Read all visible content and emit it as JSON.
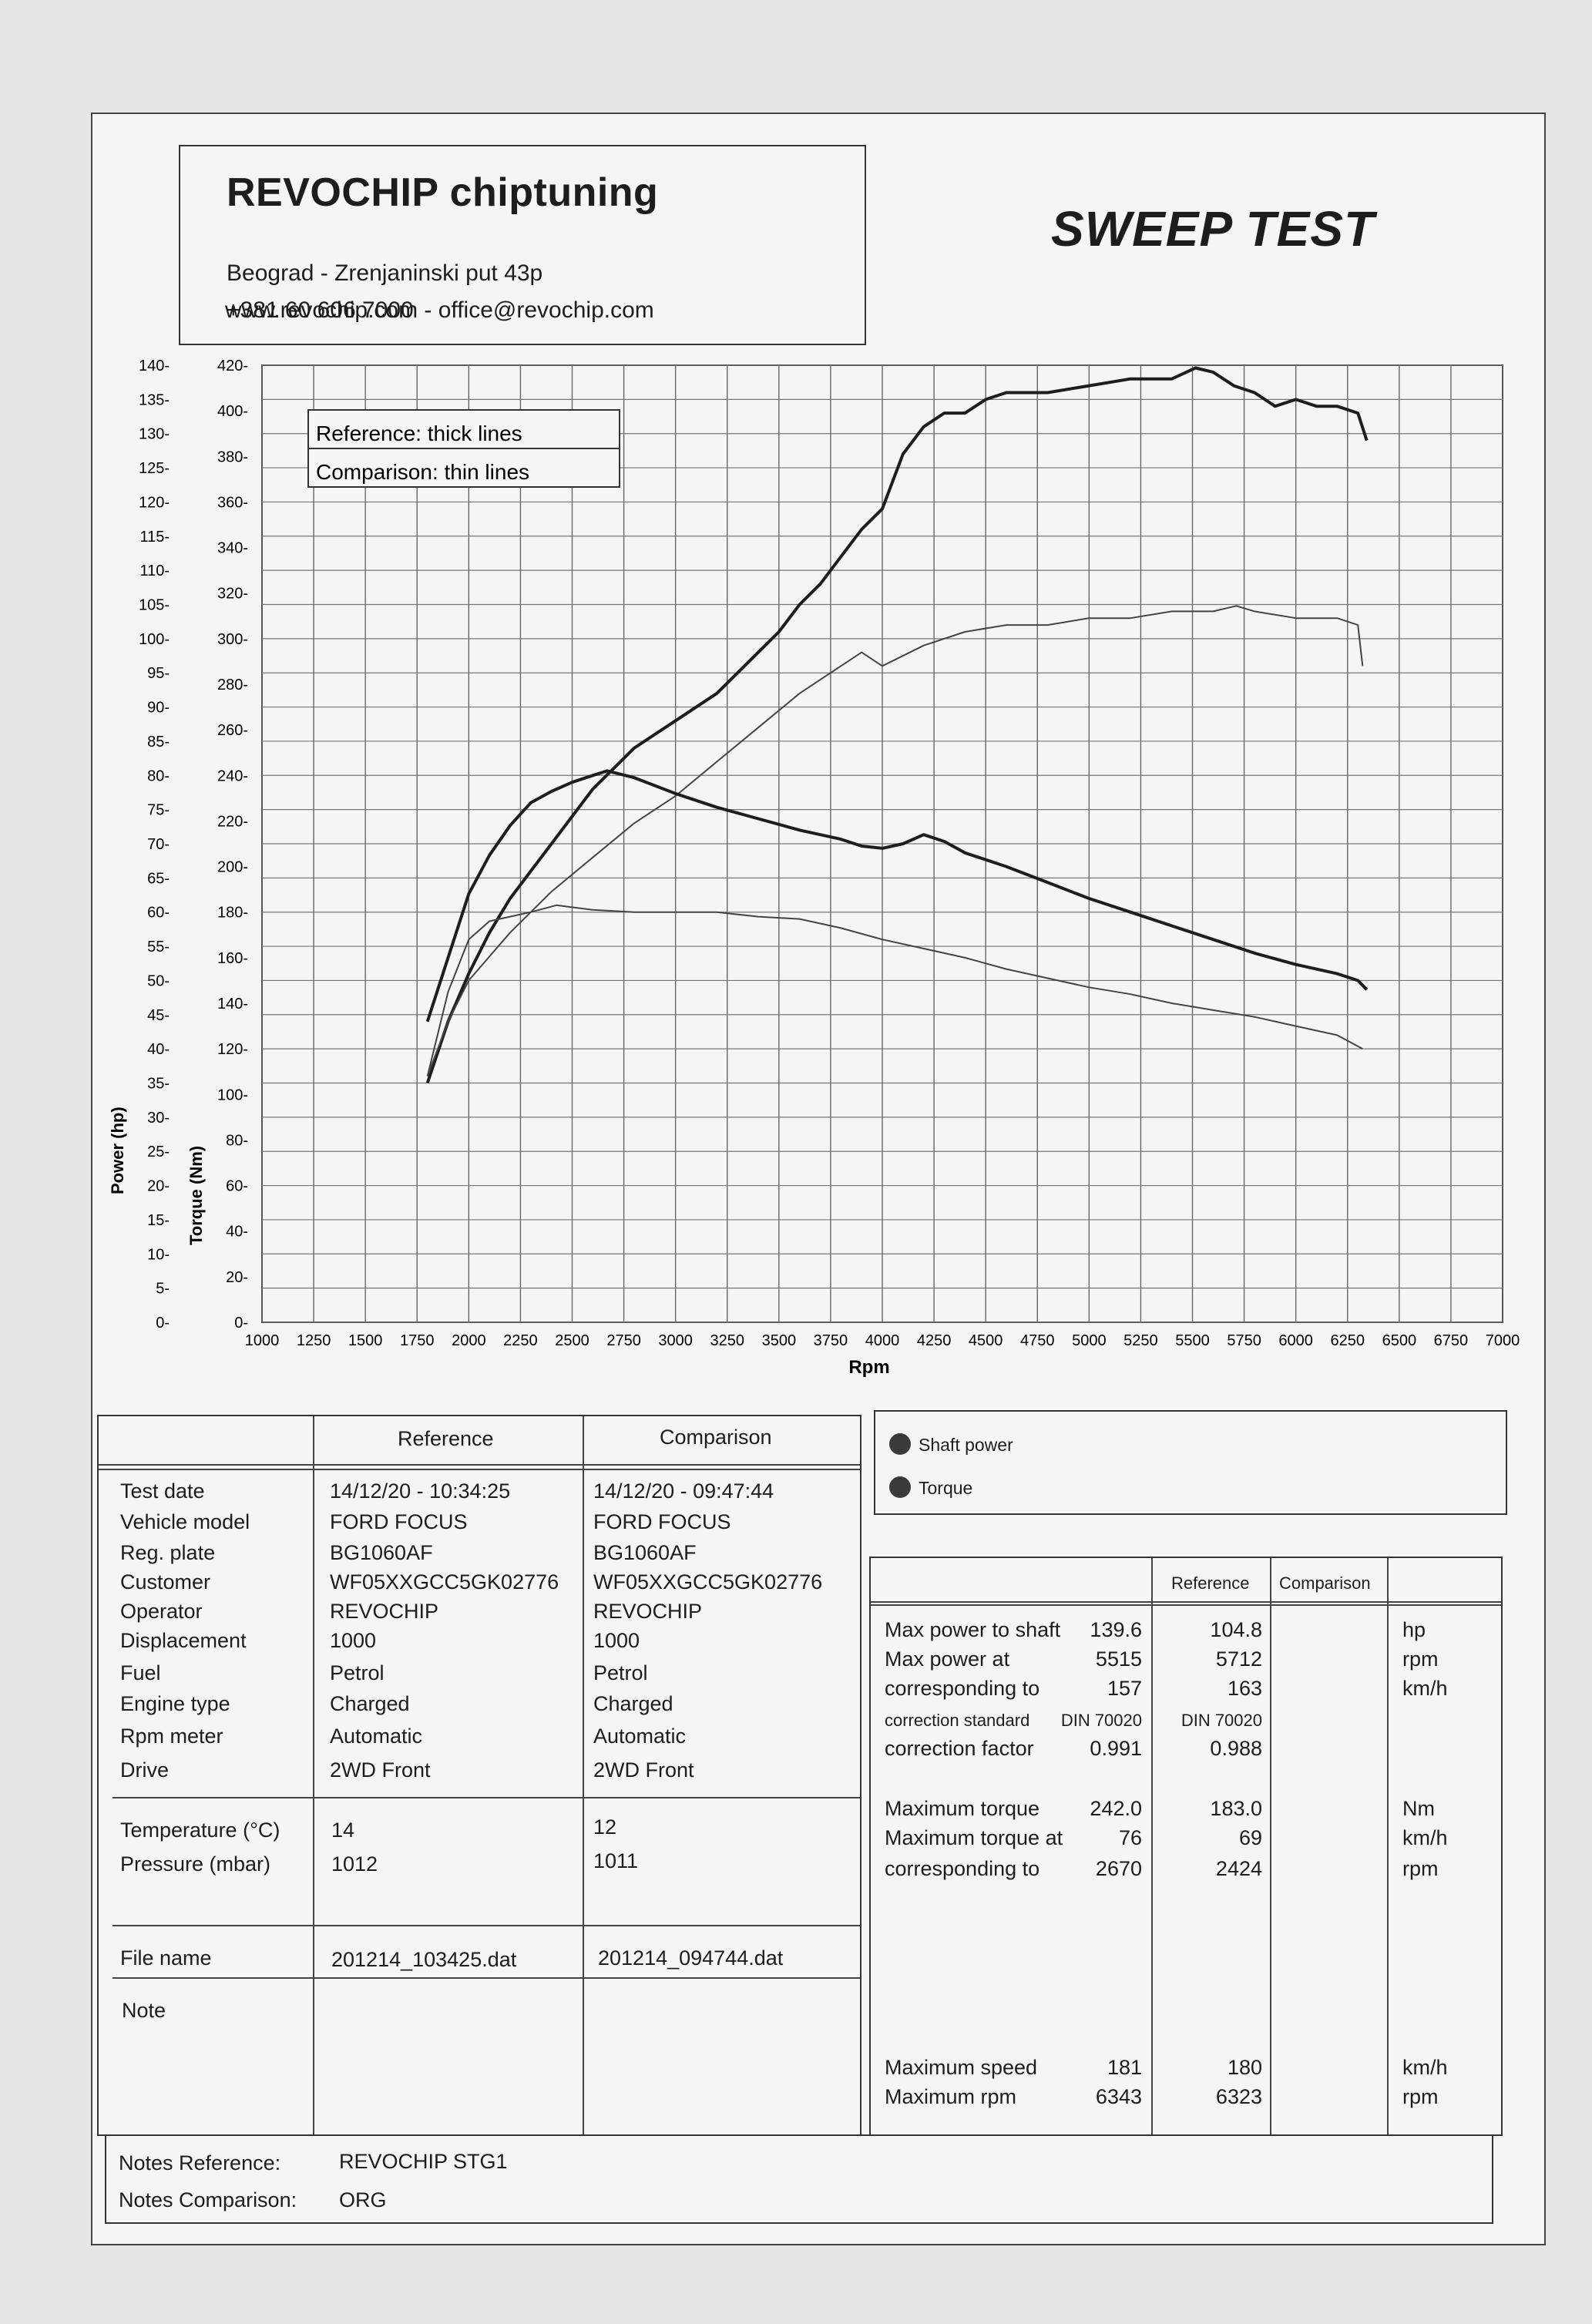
{
  "header": {
    "company": "REVOCHIP chiptuning",
    "address": "Beograd - Zrenjaninski put 43p",
    "phone": "+381 60 606 7000",
    "web": "www.revochip.com - office@revochip.com",
    "report_title": "SWEEP TEST"
  },
  "chart_data": {
    "type": "line",
    "xlabel": "Rpm",
    "ylabel_left": "Power (hp)",
    "ylabel_right": "Torque (Nm)",
    "x_ticks": [
      1000,
      1250,
      1500,
      1750,
      2000,
      2250,
      2500,
      2750,
      3000,
      3250,
      3500,
      3750,
      4000,
      4250,
      4500,
      4750,
      5000,
      5250,
      5500,
      5750,
      6000,
      6250,
      6500,
      6750,
      7000
    ],
    "power_ticks": [
      0,
      5,
      10,
      15,
      20,
      25,
      30,
      35,
      40,
      45,
      50,
      55,
      60,
      65,
      70,
      75,
      80,
      85,
      90,
      95,
      100,
      105,
      110,
      115,
      120,
      125,
      130,
      135,
      140
    ],
    "torque_ticks": [
      0,
      20,
      40,
      60,
      80,
      100,
      120,
      140,
      160,
      180,
      200,
      220,
      240,
      260,
      280,
      300,
      320,
      340,
      360,
      380,
      400,
      420
    ],
    "xlim": [
      1000,
      7000
    ],
    "power_ylim": [
      0,
      140
    ],
    "torque_ylim": [
      0,
      420
    ],
    "legend_note_reference": "Reference: thick lines",
    "legend_note_comparison": "Comparison: thin lines",
    "series": [
      {
        "name": "Shaft power",
        "run": "Reference",
        "axis": "power",
        "width": "thick",
        "points": [
          [
            1800,
            35
          ],
          [
            1900,
            44
          ],
          [
            2000,
            51
          ],
          [
            2100,
            57
          ],
          [
            2200,
            62
          ],
          [
            2300,
            66
          ],
          [
            2400,
            70
          ],
          [
            2500,
            74
          ],
          [
            2600,
            78
          ],
          [
            2700,
            81
          ],
          [
            2800,
            84
          ],
          [
            2900,
            86
          ],
          [
            3000,
            88
          ],
          [
            3100,
            90
          ],
          [
            3200,
            92
          ],
          [
            3300,
            95
          ],
          [
            3400,
            98
          ],
          [
            3500,
            101
          ],
          [
            3600,
            105
          ],
          [
            3700,
            108
          ],
          [
            3800,
            112
          ],
          [
            3900,
            116
          ],
          [
            4000,
            119
          ],
          [
            4100,
            127
          ],
          [
            4200,
            131
          ],
          [
            4300,
            133
          ],
          [
            4400,
            133
          ],
          [
            4500,
            135
          ],
          [
            4600,
            136
          ],
          [
            4800,
            136
          ],
          [
            5000,
            137
          ],
          [
            5200,
            138
          ],
          [
            5400,
            138
          ],
          [
            5515,
            139.6
          ],
          [
            5600,
            139
          ],
          [
            5700,
            137
          ],
          [
            5800,
            136
          ],
          [
            5900,
            134
          ],
          [
            6000,
            135
          ],
          [
            6100,
            134
          ],
          [
            6200,
            134
          ],
          [
            6300,
            133
          ],
          [
            6343,
            129
          ]
        ]
      },
      {
        "name": "Shaft power",
        "run": "Comparison",
        "axis": "power",
        "width": "thin",
        "points": [
          [
            1800,
            36
          ],
          [
            1900,
            44
          ],
          [
            2000,
            50
          ],
          [
            2200,
            57
          ],
          [
            2400,
            63
          ],
          [
            2600,
            68
          ],
          [
            2800,
            73
          ],
          [
            3000,
            77
          ],
          [
            3200,
            82
          ],
          [
            3400,
            87
          ],
          [
            3600,
            92
          ],
          [
            3800,
            96
          ],
          [
            3900,
            98
          ],
          [
            4000,
            96
          ],
          [
            4200,
            99
          ],
          [
            4400,
            101
          ],
          [
            4600,
            102
          ],
          [
            4800,
            102
          ],
          [
            5000,
            103
          ],
          [
            5200,
            103
          ],
          [
            5400,
            104
          ],
          [
            5600,
            104
          ],
          [
            5712,
            104.8
          ],
          [
            5800,
            104
          ],
          [
            6000,
            103
          ],
          [
            6200,
            103
          ],
          [
            6300,
            102
          ],
          [
            6323,
            96
          ]
        ]
      },
      {
        "name": "Torque",
        "run": "Reference",
        "axis": "torque",
        "width": "thick",
        "points": [
          [
            1800,
            132
          ],
          [
            1900,
            160
          ],
          [
            2000,
            188
          ],
          [
            2100,
            205
          ],
          [
            2200,
            218
          ],
          [
            2300,
            228
          ],
          [
            2400,
            233
          ],
          [
            2500,
            237
          ],
          [
            2600,
            240
          ],
          [
            2670,
            242.0
          ],
          [
            2800,
            239
          ],
          [
            3000,
            232
          ],
          [
            3200,
            226
          ],
          [
            3400,
            221
          ],
          [
            3600,
            216
          ],
          [
            3800,
            212
          ],
          [
            3900,
            209
          ],
          [
            4000,
            208
          ],
          [
            4100,
            210
          ],
          [
            4200,
            214
          ],
          [
            4300,
            211
          ],
          [
            4400,
            206
          ],
          [
            4600,
            200
          ],
          [
            4800,
            193
          ],
          [
            5000,
            186
          ],
          [
            5200,
            180
          ],
          [
            5400,
            174
          ],
          [
            5600,
            168
          ],
          [
            5800,
            162
          ],
          [
            6000,
            157
          ],
          [
            6200,
            153
          ],
          [
            6300,
            150
          ],
          [
            6343,
            146
          ]
        ]
      },
      {
        "name": "Torque",
        "run": "Comparison",
        "axis": "torque",
        "width": "thin",
        "points": [
          [
            1800,
            108
          ],
          [
            1900,
            145
          ],
          [
            2000,
            168
          ],
          [
            2100,
            176
          ],
          [
            2200,
            178
          ],
          [
            2300,
            180
          ],
          [
            2424,
            183.0
          ],
          [
            2600,
            181
          ],
          [
            2800,
            180
          ],
          [
            3000,
            180
          ],
          [
            3200,
            180
          ],
          [
            3400,
            178
          ],
          [
            3600,
            177
          ],
          [
            3800,
            173
          ],
          [
            4000,
            168
          ],
          [
            4200,
            164
          ],
          [
            4400,
            160
          ],
          [
            4600,
            155
          ],
          [
            4800,
            151
          ],
          [
            5000,
            147
          ],
          [
            5200,
            144
          ],
          [
            5400,
            140
          ],
          [
            5600,
            137
          ],
          [
            5800,
            134
          ],
          [
            6000,
            130
          ],
          [
            6200,
            126
          ],
          [
            6323,
            120
          ]
        ]
      }
    ]
  },
  "legend": {
    "shaft_power": "Shaft power",
    "torque": "Torque",
    "color": "#3a3a3a"
  },
  "details": {
    "col_reference": "Reference",
    "col_comparison": "Comparison",
    "rows": [
      {
        "label": "Test date",
        "ref": "14/12/20 - 10:34:25",
        "cmp": "14/12/20 - 09:47:44"
      },
      {
        "label": "Vehicle model",
        "ref": "FORD FOCUS",
        "cmp": "FORD FOCUS"
      },
      {
        "label": "Reg. plate",
        "ref": "BG1060AF",
        "cmp": "BG1060AF"
      },
      {
        "label": "Customer",
        "ref": "WF05XXGCC5GK02776",
        "cmp": "WF05XXGCC5GK02776"
      },
      {
        "label": "Operator",
        "ref": "REVOCHIP",
        "cmp": "REVOCHIP"
      },
      {
        "label": "Displacement",
        "ref": "1000",
        "cmp": "1000"
      },
      {
        "label": "Fuel",
        "ref": "Petrol",
        "cmp": "Petrol"
      },
      {
        "label": "Engine type",
        "ref": "Charged",
        "cmp": "Charged"
      },
      {
        "label": "Rpm meter",
        "ref": "Automatic",
        "cmp": "Automatic"
      },
      {
        "label": "Drive",
        "ref": "2WD Front",
        "cmp": "2WD Front"
      }
    ],
    "env_rows": [
      {
        "label": "Temperature (°C)",
        "ref": "14",
        "cmp": "12"
      },
      {
        "label": "Pressure (mbar)",
        "ref": "1012",
        "cmp": "1011"
      }
    ],
    "file": {
      "label": "File name",
      "ref": "201214_103425.dat",
      "cmp": "201214_094744.dat"
    },
    "note": {
      "label": "Note",
      "ref": "",
      "cmp": ""
    }
  },
  "results": {
    "col_reference": "Reference",
    "col_comparison": "Comparison",
    "rows": [
      {
        "label": "Max power to shaft",
        "ref": "139.6",
        "cmp": "104.8",
        "unit": "hp"
      },
      {
        "label": "Max power at",
        "ref": "5515",
        "cmp": "5712",
        "unit": "rpm"
      },
      {
        "label": "corresponding to",
        "ref": "157",
        "cmp": "163",
        "unit": "km/h"
      },
      {
        "label": "correction standard",
        "ref": "DIN 70020",
        "cmp": "DIN 70020",
        "unit": ""
      },
      {
        "label": "correction factor",
        "ref": "0.991",
        "cmp": "0.988",
        "unit": ""
      },
      {
        "label": "Maximum torque",
        "ref": "242.0",
        "cmp": "183.0",
        "unit": "Nm"
      },
      {
        "label": "Maximum torque at",
        "ref": "76",
        "cmp": "69",
        "unit": "km/h"
      },
      {
        "label": "corresponding to",
        "ref": "2670",
        "cmp": "2424",
        "unit": "rpm"
      },
      {
        "label": "Maximum speed",
        "ref": "181",
        "cmp": "180",
        "unit": "km/h"
      },
      {
        "label": "Maximum rpm",
        "ref": "6343",
        "cmp": "6323",
        "unit": "rpm"
      }
    ]
  },
  "notes": {
    "reference_label": "Notes Reference:",
    "reference_value": "REVOCHIP STG1",
    "comparison_label": "Notes Comparison:",
    "comparison_value": "ORG"
  }
}
